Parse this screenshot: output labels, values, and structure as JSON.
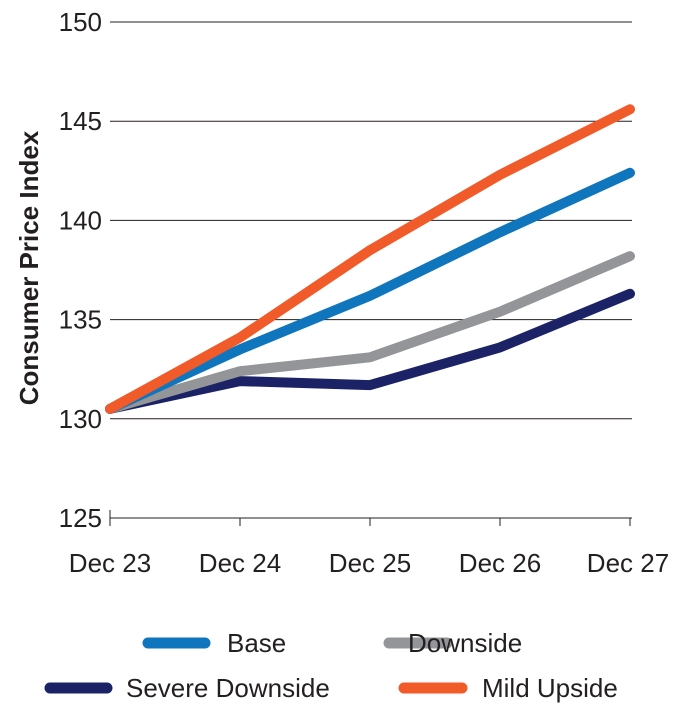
{
  "chart_data": {
    "type": "line",
    "title": "",
    "xlabel": "",
    "ylabel": "Consumer Price Index",
    "categories": [
      "Dec 23",
      "Dec 24",
      "Dec 25",
      "Dec 26",
      "Dec 27"
    ],
    "ylim": [
      125,
      150
    ],
    "yticks": [
      125,
      130,
      135,
      140,
      145,
      150
    ],
    "grid": "horizontal",
    "legend_position": "bottom",
    "series": [
      {
        "name": "Base",
        "color": "#0f75bd",
        "values": [
          130.5,
          133.5,
          136.2,
          139.4,
          142.4
        ]
      },
      {
        "name": "Downside",
        "color": "#939598",
        "values": [
          130.5,
          132.4,
          133.1,
          135.4,
          138.2
        ]
      },
      {
        "name": "Severe Downside",
        "color": "#1b2366",
        "values": [
          130.5,
          131.9,
          131.7,
          133.6,
          136.3
        ]
      },
      {
        "name": "Mild Upside",
        "color": "#f15a29",
        "values": [
          130.5,
          134.1,
          138.5,
          142.3,
          145.6
        ]
      }
    ]
  }
}
